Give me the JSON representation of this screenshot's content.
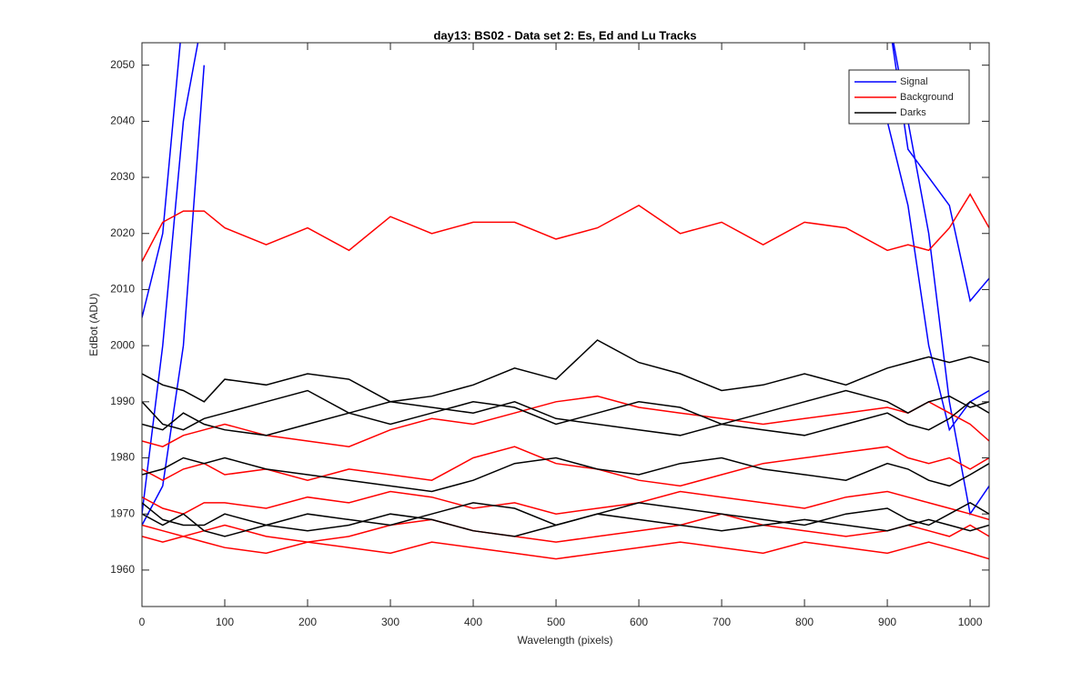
{
  "chart_data": {
    "type": "line",
    "title": "day13: BS02 - Data set 2: Es, Ed and Lu Tracks",
    "xlabel": "Wavelength (pixels)",
    "ylabel": "EdBot (ADU)",
    "xlim": [
      0,
      1023
    ],
    "ylim": [
      1953.5,
      2054
    ],
    "xticks": [
      0,
      100,
      200,
      300,
      400,
      500,
      600,
      700,
      800,
      900,
      1000
    ],
    "yticks": [
      1960,
      1970,
      1980,
      1990,
      2000,
      2010,
      2020,
      2030,
      2040,
      2050
    ],
    "legend": "upper right",
    "x": [
      0,
      25,
      50,
      75,
      100,
      150,
      200,
      250,
      300,
      350,
      400,
      450,
      500,
      550,
      600,
      650,
      700,
      750,
      800,
      850,
      900,
      925,
      950,
      975,
      1000,
      1023
    ],
    "series": [
      {
        "name": "Signal",
        "color": "#0000ff",
        "values": [
          [
            2005,
            2020,
            2060,
            2060,
            null,
            null,
            null,
            null,
            null,
            null,
            null,
            null,
            null,
            null,
            null,
            null,
            null,
            null,
            null,
            null,
            2060,
            2035,
            2030,
            2025,
            2008,
            2012
          ],
          [
            1970,
            2000,
            2040,
            2060,
            null,
            null,
            null,
            null,
            null,
            null,
            null,
            null,
            null,
            null,
            null,
            null,
            null,
            null,
            null,
            null,
            2040,
            2025,
            2000,
            1985,
            1990,
            1992
          ],
          [
            1968,
            1975,
            2000,
            2050,
            null,
            null,
            null,
            null,
            null,
            null,
            null,
            null,
            null,
            null,
            null,
            null,
            null,
            null,
            null,
            null,
            2060,
            2040,
            2020,
            1990,
            1970,
            1975
          ]
        ]
      },
      {
        "name": "Background",
        "color": "#ff0000",
        "values": [
          [
            2015,
            2022,
            2024,
            2024,
            2021,
            2018,
            2021,
            2017,
            2023,
            2020,
            2022,
            2022,
            2019,
            2021,
            2025,
            2020,
            2022,
            2018,
            2022,
            2021,
            2017,
            2018,
            2017,
            2021,
            2027,
            2021
          ],
          [
            1983,
            1982,
            1984,
            1985,
            1986,
            1984,
            1983,
            1982,
            1985,
            1987,
            1986,
            1988,
            1990,
            1991,
            1989,
            1988,
            1987,
            1986,
            1987,
            1988,
            1989,
            1988,
            1990,
            1988,
            1986,
            1983
          ],
          [
            1978,
            1976,
            1978,
            1979,
            1977,
            1978,
            1976,
            1978,
            1977,
            1976,
            1980,
            1982,
            1979,
            1978,
            1976,
            1975,
            1977,
            1979,
            1980,
            1981,
            1982,
            1980,
            1979,
            1980,
            1978,
            1980
          ],
          [
            1973,
            1971,
            1970,
            1972,
            1972,
            1971,
            1973,
            1972,
            1974,
            1973,
            1971,
            1972,
            1970,
            1971,
            1972,
            1974,
            1973,
            1972,
            1971,
            1973,
            1974,
            1973,
            1972,
            1971,
            1970,
            1969
          ],
          [
            1966,
            1965,
            1966,
            1965,
            1964,
            1963,
            1965,
            1964,
            1963,
            1965,
            1964,
            1963,
            1962,
            1963,
            1964,
            1965,
            1964,
            1963,
            1965,
            1964,
            1963,
            1964,
            1965,
            1964,
            1963,
            1962
          ],
          [
            1968,
            1967,
            1966,
            1967,
            1968,
            1966,
            1965,
            1966,
            1968,
            1969,
            1967,
            1966,
            1965,
            1966,
            1967,
            1968,
            1970,
            1968,
            1967,
            1966,
            1967,
            1968,
            1967,
            1966,
            1968,
            1966
          ]
        ]
      },
      {
        "name": "Darks",
        "color": "#000000",
        "values": [
          [
            1995,
            1993,
            1992,
            1990,
            1994,
            1993,
            1995,
            1994,
            1990,
            1991,
            1993,
            1996,
            1994,
            2001,
            1997,
            1995,
            1992,
            1993,
            1995,
            1993,
            1996,
            1997,
            1998,
            1997,
            1998,
            1997
          ],
          [
            1990,
            1986,
            1985,
            1987,
            1988,
            1990,
            1992,
            1988,
            1986,
            1988,
            1990,
            1989,
            1986,
            1988,
            1990,
            1989,
            1986,
            1988,
            1990,
            1992,
            1990,
            1988,
            1990,
            1991,
            1989,
            1990
          ],
          [
            1986,
            1985,
            1988,
            1986,
            1985,
            1984,
            1986,
            1988,
            1990,
            1989,
            1988,
            1990,
            1987,
            1986,
            1985,
            1984,
            1986,
            1985,
            1984,
            1986,
            1988,
            1986,
            1985,
            1987,
            1990,
            1988
          ],
          [
            1977,
            1978,
            1980,
            1979,
            1980,
            1978,
            1977,
            1976,
            1975,
            1974,
            1976,
            1979,
            1980,
            1978,
            1977,
            1979,
            1980,
            1978,
            1977,
            1976,
            1979,
            1978,
            1976,
            1975,
            1977,
            1979
          ],
          [
            1972,
            1969,
            1968,
            1968,
            1970,
            1968,
            1967,
            1968,
            1970,
            1969,
            1967,
            1966,
            1968,
            1970,
            1972,
            1971,
            1970,
            1969,
            1968,
            1970,
            1971,
            1969,
            1968,
            1970,
            1972,
            1970
          ],
          [
            1970,
            1968,
            1970,
            1967,
            1966,
            1968,
            1970,
            1969,
            1968,
            1970,
            1972,
            1971,
            1968,
            1970,
            1969,
            1968,
            1967,
            1968,
            1969,
            1968,
            1967,
            1968,
            1969,
            1968,
            1967,
            1968
          ]
        ]
      }
    ]
  }
}
